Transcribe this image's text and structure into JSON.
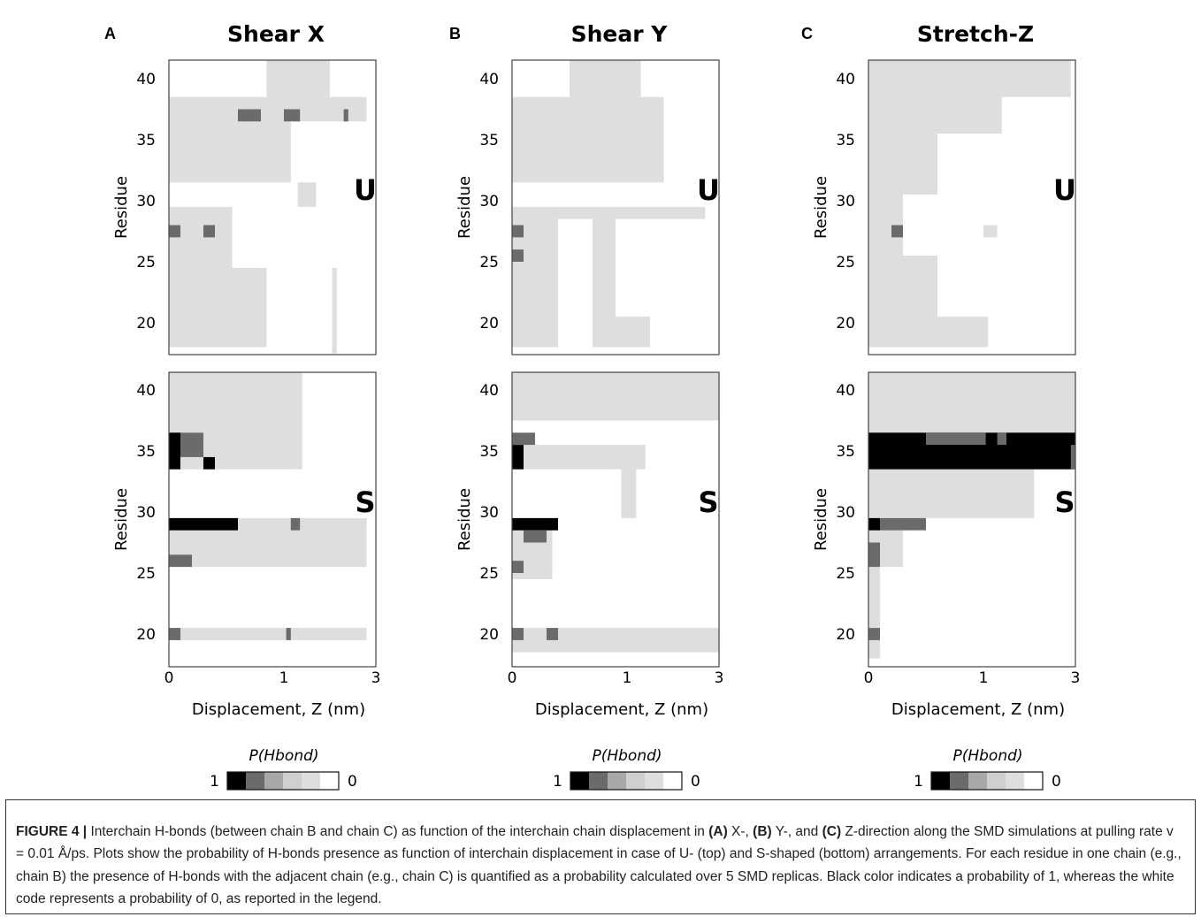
{
  "colors": {
    "p1": "#000000",
    "p08": "#6b6b6b",
    "p06": "#a8a8a8",
    "p04": "#cfcfcf",
    "p02": "#dedede",
    "p0": "#ffffff",
    "frame": "#444444"
  },
  "figure": {
    "panels": [
      {
        "letter": "A",
        "title": "Shear X"
      },
      {
        "letter": "B",
        "title": "Shear Y"
      },
      {
        "letter": "C",
        "title": "Stretch-Z"
      }
    ],
    "row_labels": [
      "U",
      "S"
    ],
    "xlabel": "Displacement, Z (nm)",
    "ylabel": "Residue",
    "xticks": [
      "0",
      "1",
      "3"
    ],
    "yticks": [
      "40",
      "35",
      "30",
      "25",
      "20"
    ],
    "legend": {
      "title": "P(Hbond)",
      "left_label": "1",
      "right_label": "0"
    }
  },
  "caption": {
    "figure_label": "FIGURE 4 |",
    "t1": " Interchain H-bonds (between chain B and chain C) as function of the interchain chain displacement in ",
    "a": "(A)",
    "t2": " X-, ",
    "b": "(B)",
    "t3": " Y-, and ",
    "c": "(C)",
    "t4": " Z-direction along the SMD simulations at pulling rate v = 0.01 Å/ps. Plots show the probability of H-bonds presence as function of interchain displacement in case of U- (top) and S-shaped (bottom) arrangements. For each residue in one chain (e.g., chain B) the presence of H-bonds with the adjacent chain (e.g., chain C) is quantified as a probability calculated over 5 SMD replicas. Black color indicates a probability of 1, whereas the white code represents a probability of 0, as reported in the legend."
  },
  "chart_data": [
    {
      "type": "heatmap",
      "panel": "A",
      "title": "Shear X",
      "arrangement": "U",
      "xlabel": "Displacement, Z (nm)",
      "ylabel": "Residue",
      "xlim": [
        0,
        3
      ],
      "ylim": [
        18,
        41.5
      ],
      "legend": "P(Hbond)",
      "cells": [
        {
          "x0": 0.0,
          "x1": 0.55,
          "y0": 18,
          "y1": 29.5,
          "p": 0.2
        },
        {
          "x0": 0.0,
          "x1": 1.15,
          "y0": 31.5,
          "y1": 38.5,
          "p": 0.2
        },
        {
          "x0": 0.0,
          "x1": 2.8,
          "y0": 36.5,
          "y1": 38.5,
          "p": 0.2
        },
        {
          "x0": 0.85,
          "x1": 2.0,
          "y0": 38.5,
          "y1": 41.5,
          "p": 0.2
        },
        {
          "x0": 1.3,
          "x1": 1.7,
          "y0": 29.5,
          "y1": 31.5,
          "p": 0.2
        },
        {
          "x0": 2.05,
          "x1": 2.15,
          "y0": 17.5,
          "y1": 24.5,
          "p": 0.2
        },
        {
          "x0": 0.55,
          "x1": 0.85,
          "y0": 18,
          "y1": 24.5,
          "p": 0.2
        },
        {
          "x0": 0.6,
          "x1": 0.8,
          "y0": 36.5,
          "y1": 37.5,
          "p": 0.8
        },
        {
          "x0": 1.0,
          "x1": 1.35,
          "y0": 36.5,
          "y1": 37.5,
          "p": 0.8
        },
        {
          "x0": 2.3,
          "x1": 2.4,
          "y0": 36.5,
          "y1": 37.5,
          "p": 0.8
        },
        {
          "x0": 0.0,
          "x1": 0.1,
          "y0": 27,
          "y1": 28,
          "p": 0.8
        },
        {
          "x0": 0.3,
          "x1": 0.4,
          "y0": 27,
          "y1": 28,
          "p": 0.8
        }
      ]
    },
    {
      "type": "heatmap",
      "panel": "A",
      "title": "Shear X",
      "arrangement": "S",
      "xlabel": "Displacement, Z (nm)",
      "ylabel": "Residue",
      "xlim": [
        0,
        3
      ],
      "ylim": [
        18,
        41.5
      ],
      "legend": "P(Hbond)",
      "cells": [
        {
          "x0": 0.0,
          "x1": 0.45,
          "y0": 33.5,
          "y1": 41.5,
          "p": 0.2
        },
        {
          "x0": 0.45,
          "x1": 1.2,
          "y0": 33.5,
          "y1": 41.5,
          "p": 0.2
        },
        {
          "x0": 1.2,
          "x1": 1.4,
          "y0": 33.5,
          "y1": 41.5,
          "p": 0.2
        },
        {
          "x0": 0.0,
          "x1": 2.8,
          "y0": 28.5,
          "y1": 29.5,
          "p": 0.2
        },
        {
          "x0": 0.0,
          "x1": 2.8,
          "y0": 25.5,
          "y1": 28.5,
          "p": 0.2
        },
        {
          "x0": 0.0,
          "x1": 2.8,
          "y0": 19.5,
          "y1": 20.5,
          "p": 0.2
        },
        {
          "x0": 0.0,
          "x1": 0.1,
          "y0": 33.5,
          "y1": 36.5,
          "p": 1
        },
        {
          "x0": 0.1,
          "x1": 0.3,
          "y0": 34.5,
          "y1": 36.5,
          "p": 0.8
        },
        {
          "x0": 0.3,
          "x1": 0.4,
          "y0": 33.5,
          "y1": 34.5,
          "p": 1
        },
        {
          "x0": 0.0,
          "x1": 0.6,
          "y0": 28.5,
          "y1": 29.5,
          "p": 1
        },
        {
          "x0": 1.15,
          "x1": 1.35,
          "y0": 28.5,
          "y1": 29.5,
          "p": 0.8
        },
        {
          "x0": 0.0,
          "x1": 0.2,
          "y0": 25.5,
          "y1": 26.5,
          "p": 0.8
        },
        {
          "x0": 0.0,
          "x1": 0.1,
          "y0": 19.5,
          "y1": 20.5,
          "p": 0.8
        },
        {
          "x0": 1.05,
          "x1": 1.15,
          "y0": 19.5,
          "y1": 20.5,
          "p": 0.8
        }
      ]
    },
    {
      "type": "heatmap",
      "panel": "B",
      "title": "Shear Y",
      "arrangement": "U",
      "xlabel": "Displacement, Z (nm)",
      "ylabel": "Residue",
      "xlim": [
        0,
        3
      ],
      "ylim": [
        18,
        41.5
      ],
      "legend": "P(Hbond)",
      "cells": [
        {
          "x0": 0.0,
          "x1": 1.8,
          "y0": 31.5,
          "y1": 38.5,
          "p": 0.2
        },
        {
          "x0": 0.5,
          "x1": 1.3,
          "y0": 38.5,
          "y1": 41.5,
          "p": 0.2
        },
        {
          "x0": 0.0,
          "x1": 2.7,
          "y0": 28.5,
          "y1": 29.5,
          "p": 0.2
        },
        {
          "x0": 0.0,
          "x1": 0.4,
          "y0": 18,
          "y1": 28.5,
          "p": 0.2
        },
        {
          "x0": 0.7,
          "x1": 0.9,
          "y0": 18,
          "y1": 28.5,
          "p": 0.2
        },
        {
          "x0": 0.9,
          "x1": 1.5,
          "y0": 18,
          "y1": 20.5,
          "p": 0.2
        },
        {
          "x0": 0.0,
          "x1": 0.1,
          "y0": 27,
          "y1": 28,
          "p": 0.8
        },
        {
          "x0": 0.0,
          "x1": 0.1,
          "y0": 25,
          "y1": 26,
          "p": 0.8
        }
      ]
    },
    {
      "type": "heatmap",
      "panel": "B",
      "title": "Shear Y",
      "arrangement": "S",
      "xlabel": "Displacement, Z (nm)",
      "ylabel": "Residue",
      "xlim": [
        0,
        3
      ],
      "ylim": [
        18,
        41.5
      ],
      "legend": "P(Hbond)",
      "cells": [
        {
          "x0": 0.0,
          "x1": 3.0,
          "y0": 37.5,
          "y1": 41.5,
          "p": 0.2
        },
        {
          "x0": 0.0,
          "x1": 1.4,
          "y0": 33.5,
          "y1": 35.5,
          "p": 0.2
        },
        {
          "x0": 0.95,
          "x1": 1.2,
          "y0": 29.5,
          "y1": 33.5,
          "p": 0.2
        },
        {
          "x0": 0.0,
          "x1": 0.35,
          "y0": 24.5,
          "y1": 29.5,
          "p": 0.2
        },
        {
          "x0": 0.0,
          "x1": 3.0,
          "y0": 18.5,
          "y1": 20.5,
          "p": 0.2
        },
        {
          "x0": 0.0,
          "x1": 0.1,
          "y0": 33.5,
          "y1": 35.5,
          "p": 1
        },
        {
          "x0": 0.0,
          "x1": 0.2,
          "y0": 35.5,
          "y1": 36.5,
          "p": 0.8
        },
        {
          "x0": 0.0,
          "x1": 0.4,
          "y0": 28.5,
          "y1": 29.5,
          "p": 1
        },
        {
          "x0": 0.1,
          "x1": 0.3,
          "y0": 27.5,
          "y1": 28.5,
          "p": 0.8
        },
        {
          "x0": 0.0,
          "x1": 0.1,
          "y0": 25,
          "y1": 26,
          "p": 0.8
        },
        {
          "x0": 0.0,
          "x1": 0.1,
          "y0": 19.5,
          "y1": 20.5,
          "p": 0.8
        },
        {
          "x0": 0.3,
          "x1": 0.4,
          "y0": 19.5,
          "y1": 20.5,
          "p": 0.8
        }
      ]
    },
    {
      "type": "heatmap",
      "panel": "C",
      "title": "Stretch-Z",
      "arrangement": "U",
      "xlabel": "Displacement, Z (nm)",
      "ylabel": "Residue",
      "xlim": [
        0,
        3
      ],
      "ylim": [
        18,
        41.5
      ],
      "legend": "P(Hbond)",
      "cells": [
        {
          "x0": 0.0,
          "x1": 2.9,
          "y0": 38.5,
          "y1": 41.5,
          "p": 0.2
        },
        {
          "x0": 0.0,
          "x1": 1.4,
          "y0": 35.5,
          "y1": 38.5,
          "p": 0.2
        },
        {
          "x0": 0.0,
          "x1": 0.6,
          "y0": 30.5,
          "y1": 35.5,
          "p": 0.2
        },
        {
          "x0": 0.0,
          "x1": 0.3,
          "y0": 25.5,
          "y1": 30.5,
          "p": 0.2
        },
        {
          "x0": 0.0,
          "x1": 0.6,
          "y0": 20.5,
          "y1": 25.5,
          "p": 0.2
        },
        {
          "x0": 0.0,
          "x1": 1.1,
          "y0": 18,
          "y1": 20.5,
          "p": 0.2
        },
        {
          "x0": 1.0,
          "x1": 1.3,
          "y0": 27,
          "y1": 28,
          "p": 0.2
        },
        {
          "x0": 0.2,
          "x1": 0.3,
          "y0": 27,
          "y1": 28,
          "p": 0.8
        }
      ]
    },
    {
      "type": "heatmap",
      "panel": "C",
      "title": "Stretch-Z",
      "arrangement": "S",
      "xlabel": "Displacement, Z (nm)",
      "ylabel": "Residue",
      "xlim": [
        0,
        3
      ],
      "ylim": [
        18,
        41.5
      ],
      "legend": "P(Hbond)",
      "cells": [
        {
          "x0": 0.0,
          "x1": 3.0,
          "y0": 36.5,
          "y1": 41.5,
          "p": 0.2
        },
        {
          "x0": 0.0,
          "x1": 2.1,
          "y0": 29.5,
          "y1": 33.5,
          "p": 0.2
        },
        {
          "x0": 0.0,
          "x1": 0.3,
          "y0": 25.5,
          "y1": 29.5,
          "p": 0.2
        },
        {
          "x0": 0.0,
          "x1": 0.1,
          "y0": 18,
          "y1": 25.5,
          "p": 0.2
        },
        {
          "x0": 0.0,
          "x1": 3.0,
          "y0": 33.5,
          "y1": 36.5,
          "p": 1
        },
        {
          "x0": 0.5,
          "x1": 1.05,
          "y0": 35.5,
          "y1": 36.5,
          "p": 0.8
        },
        {
          "x0": 1.3,
          "x1": 1.5,
          "y0": 35.5,
          "y1": 36.5,
          "p": 0.8
        },
        {
          "x0": 2.9,
          "x1": 3.0,
          "y0": 33.5,
          "y1": 35.5,
          "p": 0.8
        },
        {
          "x0": 0.0,
          "x1": 0.1,
          "y0": 28.5,
          "y1": 29.5,
          "p": 1
        },
        {
          "x0": 0.1,
          "x1": 0.5,
          "y0": 28.5,
          "y1": 29.5,
          "p": 0.8
        },
        {
          "x0": 0.0,
          "x1": 0.1,
          "y0": 25.5,
          "y1": 27.5,
          "p": 0.8
        },
        {
          "x0": 0.0,
          "x1": 0.1,
          "y0": 19.5,
          "y1": 20.5,
          "p": 0.8
        }
      ]
    }
  ]
}
